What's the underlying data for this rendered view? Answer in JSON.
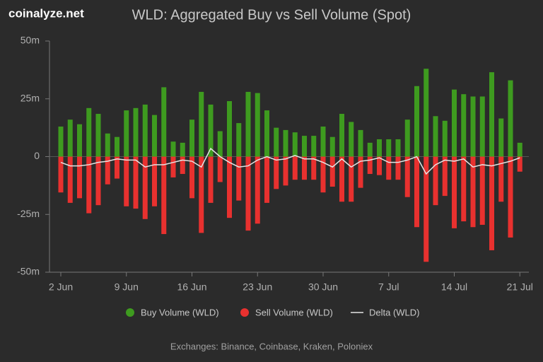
{
  "brand": "coinalyze.net",
  "chart_data": {
    "type": "bar",
    "title": "WLD: Aggregated Buy vs Sell Volume (Spot)",
    "footnote": "Exchanges: Binance, Coinbase, Kraken, Poloniex",
    "categories": [
      "2 Jun",
      null,
      null,
      null,
      null,
      null,
      null,
      "9 Jun",
      null,
      null,
      null,
      null,
      null,
      null,
      "16 Jun",
      null,
      null,
      null,
      null,
      null,
      null,
      "23 Jun",
      null,
      null,
      null,
      null,
      null,
      null,
      "30 Jun",
      null,
      null,
      null,
      null,
      null,
      null,
      "7 Jul",
      null,
      null,
      null,
      null,
      null,
      null,
      "14 Jul",
      null,
      null,
      null,
      null,
      null,
      null,
      "21 Jul"
    ],
    "series": [
      {
        "name": "Buy Volume (WLD)",
        "type": "bar",
        "color": "#3e9b1f",
        "values": [
          13,
          16,
          14,
          21,
          18.5,
          10,
          8.5,
          20,
          21,
          22.5,
          18,
          30,
          6.5,
          6,
          16,
          28,
          22.5,
          11,
          24,
          14.5,
          28,
          27.5,
          20,
          12.5,
          11.5,
          10.5,
          9,
          9,
          13,
          8.5,
          18.5,
          15,
          11.5,
          6,
          7.5,
          7.5,
          7.5,
          16,
          30.5,
          38,
          17.5,
          15.5,
          29,
          27,
          26,
          26,
          36.5,
          16.5,
          33,
          6
        ]
      },
      {
        "name": "Sell Volume (WLD)",
        "type": "bar",
        "color": "#e8312f",
        "values": [
          -15.5,
          -20,
          -18,
          -24.5,
          -21,
          -12,
          -9.5,
          -21.5,
          -22.5,
          -27,
          -21.5,
          -33.5,
          -9,
          -7.5,
          -18,
          -33,
          -20,
          -11,
          -26.5,
          -19,
          -32,
          -29,
          -20,
          -14,
          -12.5,
          -10,
          -10,
          -10,
          -15.5,
          -13,
          -19.5,
          -19.5,
          -13.5,
          -7.5,
          -8,
          -10,
          -10,
          -17.5,
          -30.5,
          -45.5,
          -21,
          -17,
          -31,
          -28,
          -30.5,
          -29.5,
          -40.5,
          -19.5,
          -35,
          -6.5
        ]
      },
      {
        "name": "Delta (WLD)",
        "type": "line",
        "color": "#e6e6e6",
        "values": [
          -2.5,
          -4,
          -4,
          -3.5,
          -2.5,
          -2,
          -1,
          -1.5,
          -1.5,
          -4.5,
          -3.5,
          -3.5,
          -2.5,
          -1.5,
          -2,
          -4.5,
          3.5,
          0,
          -2.5,
          -4.5,
          -4,
          -1.5,
          0,
          -1.5,
          -1,
          0.5,
          -1,
          -1,
          -2.5,
          -4.5,
          -1,
          -4.5,
          -2,
          -1.5,
          -0.5,
          -2.5,
          -2.5,
          -1.5,
          0,
          -7.5,
          -3.5,
          -1.5,
          -2,
          -1,
          -4.5,
          -3.5,
          -4,
          -3,
          -2,
          -0.5
        ]
      }
    ],
    "ylim": [
      -50,
      50
    ],
    "yticks": [
      {
        "value": 50,
        "label": "50m"
      },
      {
        "value": 25,
        "label": "25m"
      },
      0,
      {
        "value": -25,
        "label": "-25m"
      },
      {
        "value": -50,
        "label": "-50m"
      }
    ],
    "grid": false
  }
}
